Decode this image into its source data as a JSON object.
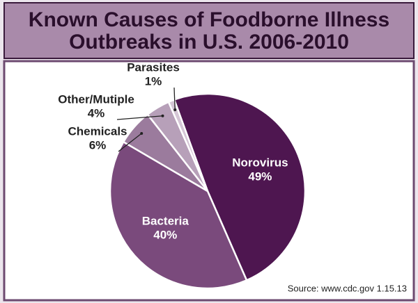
{
  "chart_data": {
    "type": "pie",
    "title": [
      "Known Causes of Foodborne Illness",
      "Outbreaks in U.S. 2006-2010"
    ],
    "categories": [
      "Norovirus",
      "Bacteria",
      "Chemicals",
      "Other/Mutiple",
      "Parasites"
    ],
    "values": [
      49,
      40,
      6,
      4,
      1
    ],
    "value_labels": [
      "49%",
      "40%",
      "6%",
      "4%",
      "1%"
    ],
    "colors": [
      "#4e1650",
      "#7a4a7c",
      "#9b7b9d",
      "#b7a0b9",
      "#d5c6d6"
    ],
    "source": "Source: www.cdc.gov 1.15.13"
  }
}
